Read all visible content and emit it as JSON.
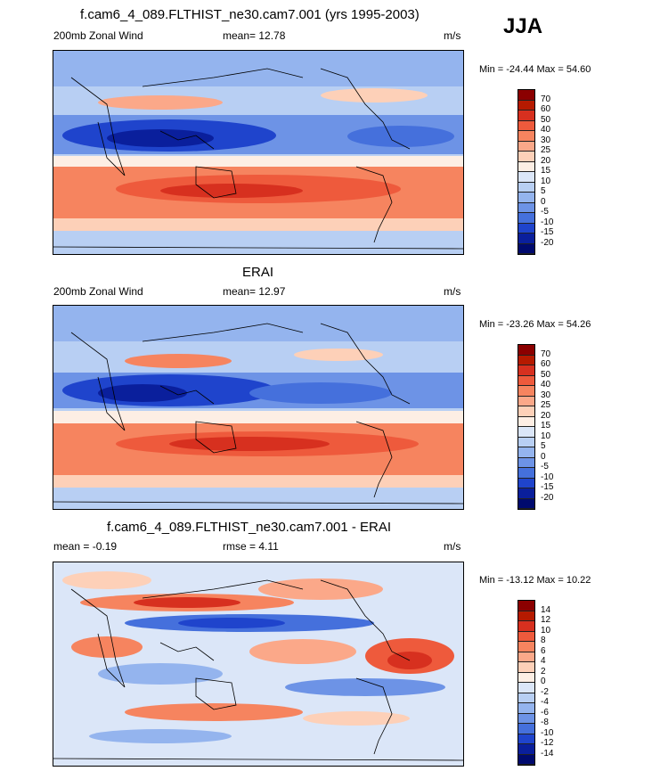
{
  "season": "JJA",
  "panels": [
    {
      "title": "f.cam6_4_089.FLTHIST_ne30.cam7.001 (yrs 1995-2003)",
      "left_label": "200mb Zonal Wind",
      "mid_label": "mean=  12.78",
      "units": "m/s",
      "minmax": "Min = -24.44 Max =  54.60",
      "colorbar": {
        "labels": [
          "70",
          "60",
          "50",
          "40",
          "30",
          "25",
          "20",
          "15",
          "10",
          "5",
          "0",
          "-5",
          "-10",
          "-15",
          "-20"
        ],
        "colors": [
          "#8b0000",
          "#b51a00",
          "#d7301f",
          "#ee5a3c",
          "#f6845f",
          "#fba889",
          "#fdd0b8",
          "#fdeee4",
          "#dbe6f8",
          "#b8cff3",
          "#94b4ee",
          "#6d93e6",
          "#4570dc",
          "#1f44cc",
          "#0a1f9c",
          "#000a6e"
        ]
      }
    },
    {
      "title": "ERAI",
      "left_label": "200mb Zonal Wind",
      "mid_label": "mean=  12.97",
      "units": "m/s",
      "minmax": "Min = -23.26 Max =  54.26",
      "colorbar": {
        "labels": [
          "70",
          "60",
          "50",
          "40",
          "30",
          "25",
          "20",
          "15",
          "10",
          "5",
          "0",
          "-5",
          "-10",
          "-15",
          "-20"
        ],
        "colors": [
          "#8b0000",
          "#b51a00",
          "#d7301f",
          "#ee5a3c",
          "#f6845f",
          "#fba889",
          "#fdd0b8",
          "#fdeee4",
          "#dbe6f8",
          "#b8cff3",
          "#94b4ee",
          "#6d93e6",
          "#4570dc",
          "#1f44cc",
          "#0a1f9c",
          "#000a6e"
        ]
      }
    },
    {
      "title": "f.cam6_4_089.FLTHIST_ne30.cam7.001 - ERAI",
      "left_label": "mean =  -0.19",
      "mid_label": "rmse =   4.11",
      "units": "m/s",
      "minmax": "Min = -13.12 Max =  10.22",
      "colorbar": {
        "labels": [
          "14",
          "12",
          "10",
          "8",
          "6",
          "4",
          "2",
          "0",
          "-2",
          "-4",
          "-6",
          "-8",
          "-10",
          "-12",
          "-14"
        ],
        "colors": [
          "#8b0000",
          "#b51a00",
          "#d7301f",
          "#ee5a3c",
          "#f6845f",
          "#fba889",
          "#fdd0b8",
          "#fdeee4",
          "#dbe6f8",
          "#b8cff3",
          "#94b4ee",
          "#6d93e6",
          "#4570dc",
          "#1f44cc",
          "#0a1f9c",
          "#000a6e"
        ]
      }
    }
  ]
}
